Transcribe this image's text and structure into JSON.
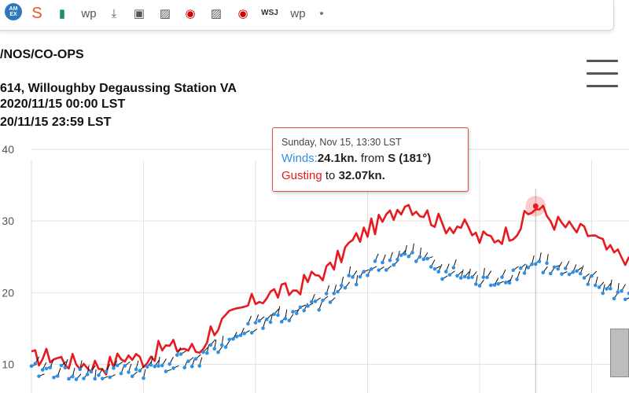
{
  "bookmarks": [
    {
      "name": "amex-icon",
      "glyph": "AM EX",
      "color": "#2e77bc"
    },
    {
      "name": "s-icon",
      "glyph": "S",
      "color": "#e8532a"
    },
    {
      "name": "sheets-icon",
      "glyph": "▮",
      "color": "#1e8e5a"
    },
    {
      "name": "wp-icon",
      "glyph": "wp",
      "color": "#555555"
    },
    {
      "name": "download-icon",
      "glyph": "⤓",
      "color": "#555555"
    },
    {
      "name": "folder-icon",
      "glyph": "▣",
      "color": "#555555"
    },
    {
      "name": "image-icon",
      "glyph": "▨",
      "color": "#555555"
    },
    {
      "name": "target-icon",
      "glyph": "◉",
      "color": "#cc0000"
    },
    {
      "name": "image-icon-2",
      "glyph": "▨",
      "color": "#555555"
    },
    {
      "name": "target-icon-2",
      "glyph": "◉",
      "color": "#cc0000"
    },
    {
      "name": "wsj-icon",
      "glyph": "WSJ",
      "color": "#333333"
    },
    {
      "name": "wp-icon-2",
      "glyph": "wp",
      "color": "#555555"
    },
    {
      "name": "more-dot-icon",
      "glyph": "•",
      "color": "#777777"
    }
  ],
  "header": {
    "line1": "/NOS/CO-OPS",
    "line2": "614, Willoughby Degaussing Station VA",
    "line3": "2020/11/15 00:00 LST",
    "line4": "20/11/15 23:59 LST"
  },
  "tooltip": {
    "time": "Sunday, Nov 15, 13:30 LST",
    "winds_label": "Winds:",
    "winds_value": "24.1kn.",
    "from_text": " from ",
    "dir": "S",
    "deg": "(181°)",
    "gust_label": "Gusting",
    "gust_to": " to ",
    "gust_value": "32.07kn."
  },
  "colors": {
    "wind": "#2f8fe6",
    "gust": "#e8191f",
    "arrow": "#111111",
    "grid": "#e2e2e2",
    "crosshair": "#bbbbbb",
    "tooltip_border": "#e8474c"
  },
  "chart_data": {
    "type": "line",
    "x_unit": "hours (LST) on 2020/11/15",
    "xlim": [
      0.0,
      16.0
    ],
    "ylim": [
      6,
      40
    ],
    "y_ticks": [
      10,
      20,
      30,
      40
    ],
    "y_tick_labels": [
      "10",
      "20",
      "30",
      "40"
    ],
    "grid": true,
    "legend": "none",
    "highlight": {
      "x": 13.5,
      "wind": 24.1,
      "gust": 32.07,
      "direction": "S",
      "degrees": 181
    },
    "series": [
      {
        "key": "gust",
        "x": [
          0,
          0.5,
          1,
          1.5,
          2,
          2.5,
          3,
          3.5,
          4,
          4.5,
          4.8,
          5,
          5.5,
          6,
          6.5,
          7,
          7.5,
          8,
          8.5,
          9,
          9.5,
          10,
          10.5,
          11,
          11.5,
          12,
          12.5,
          13,
          13.5,
          14,
          14.5,
          15,
          15.5,
          16
        ],
        "values": [
          10.8,
          11.2,
          10.4,
          10,
          9.8,
          11.2,
          10.7,
          12.3,
          12.4,
          11.9,
          14.8,
          15.5,
          17.0,
          19.0,
          20.0,
          20.2,
          22.1,
          23.3,
          26.6,
          28.8,
          30.2,
          32.7,
          31.2,
          29.5,
          29.4,
          27.5,
          27.8,
          28.9,
          32.07,
          29.9,
          28.8,
          28.1,
          25.5,
          25.0
        ]
      },
      {
        "key": "wind",
        "x": [
          0,
          0.5,
          1,
          1.5,
          2,
          2.5,
          3,
          3.5,
          4,
          4.5,
          4.8,
          5,
          5.5,
          6,
          6.5,
          7,
          7.5,
          8,
          8.5,
          9,
          9.5,
          10,
          10.5,
          11,
          11.5,
          12,
          12.5,
          13,
          13.5,
          14,
          14.5,
          15,
          15.5,
          16
        ],
        "values": [
          9.0,
          9.2,
          8.8,
          8.4,
          8.6,
          9.2,
          9.0,
          9.9,
          10.6,
          10.0,
          11.8,
          12.5,
          13.8,
          15.5,
          16.5,
          16.6,
          17.9,
          19.0,
          21.6,
          23.1,
          24.1,
          25.0,
          24.3,
          23.0,
          22.3,
          21.2,
          21.9,
          22.8,
          24.1,
          23.0,
          22.2,
          21.4,
          20.0,
          19.9
        ]
      }
    ]
  }
}
